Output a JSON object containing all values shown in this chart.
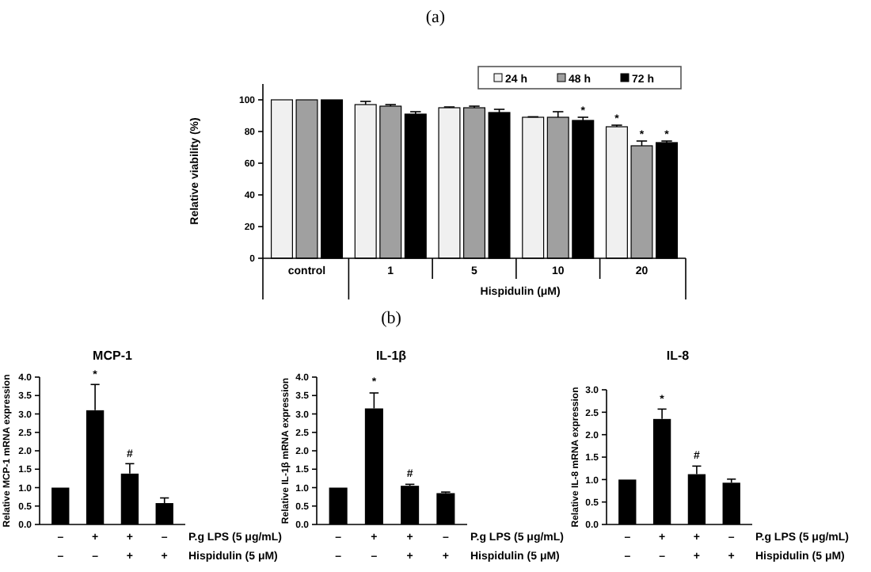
{
  "chart_data": [
    {
      "type": "bar",
      "title": "(a)",
      "ylabel": "Relative viability (%)",
      "xlabel": "Hispidulin (μM)",
      "categories": [
        "control",
        "1",
        "5",
        "10",
        "20"
      ],
      "ylim": [
        0,
        110
      ],
      "yticks": [
        0,
        20,
        40,
        60,
        80,
        100
      ],
      "legend": "top right",
      "series": [
        {
          "name": "24 h",
          "color": "#f0f0f0",
          "values": [
            100,
            97,
            95,
            89,
            83
          ],
          "errors": [
            0,
            2,
            0.5,
            0.3,
            1
          ]
        },
        {
          "name": "48 h",
          "color": "#a0a0a0",
          "values": [
            100,
            96,
            95,
            89,
            71
          ],
          "errors": [
            0,
            1,
            1,
            3.5,
            3
          ]
        },
        {
          "name": "72 h",
          "color": "#000000",
          "values": [
            100,
            91,
            92,
            87,
            73
          ],
          "errors": [
            0,
            1.5,
            2,
            2,
            1
          ]
        }
      ],
      "annotations": [
        {
          "text": "*",
          "y": 89
        },
        {
          "text": "*",
          "y": 84
        },
        {
          "text": "*",
          "y": 74
        },
        {
          "text": "*",
          "y": 74
        }
      ]
    },
    {
      "type": "bar",
      "title": "MCP-1",
      "ylabel": "Relative MCP-1 mRNA expression",
      "categories": [
        "–\n–",
        "+\n–",
        "+\n+",
        "–\n+"
      ],
      "ylim": [
        0,
        4
      ],
      "yticks": [
        {
          "value": 0,
          "label": "0.0"
        },
        0.5,
        {
          "value": 1,
          "label": "1.0"
        },
        1.5,
        {
          "value": 2,
          "label": "2.0"
        },
        2.5,
        {
          "value": 3,
          "label": "3.0"
        },
        3.5,
        {
          "value": 4,
          "label": "4.0"
        }
      ],
      "series": [
        {
          "color": "#000000",
          "values": [
            1.0,
            3.1,
            1.38,
            0.58
          ],
          "errors": [
            0,
            0.7,
            0.27,
            0.14
          ]
        }
      ],
      "annotations": [
        "P.g LPS (5 μg/mL)",
        "Hispidulin (5 μM)",
        {
          "text": "*",
          "y": 3.9
        },
        {
          "text": "#",
          "y": 1.75
        }
      ]
    },
    {
      "type": "bar",
      "title": "IL-1β",
      "ylabel": "Relative IL-1β mRNA expression",
      "categories": [
        "–\n–",
        "+\n–",
        "+\n+",
        "–\n+"
      ],
      "ylim": [
        0,
        4
      ],
      "yticks": [
        {
          "value": 0,
          "label": "0.0"
        },
        0.5,
        {
          "value": 1,
          "label": "1.0"
        },
        1.5,
        {
          "value": 2,
          "label": "2.0"
        },
        2.5,
        {
          "value": 3,
          "label": "3.0"
        },
        3.5,
        {
          "value": 4,
          "label": "4.0"
        }
      ],
      "series": [
        {
          "color": "#000000",
          "values": [
            1.0,
            3.15,
            1.05,
            0.85
          ],
          "errors": [
            0,
            0.42,
            0.04,
            0.03
          ]
        }
      ],
      "annotations": [
        "P.g LPS (5 μg/mL)",
        "Hispidulin (5 μM)",
        "(b)",
        {
          "text": "*",
          "y": 3.7
        },
        {
          "text": "#",
          "y": 1.2
        }
      ]
    },
    {
      "type": "bar",
      "title": "IL-8",
      "ylabel": "Relative IL-8 mRNA expression",
      "categories": [
        "–\n–",
        "+\n–",
        "+\n+",
        "–\n+"
      ],
      "ylim": [
        0,
        3
      ],
      "yticks": [
        {
          "value": 0,
          "label": "0.0"
        },
        0.5,
        {
          "value": 1,
          "label": "1.0"
        },
        1.5,
        {
          "value": 2,
          "label": "2.0"
        },
        2.5,
        {
          "value": 3,
          "label": "3.0"
        }
      ],
      "series": [
        {
          "color": "#000000",
          "values": [
            1.0,
            2.35,
            1.12,
            0.93
          ],
          "errors": [
            0,
            0.22,
            0.18,
            0.08
          ]
        }
      ],
      "annotations": [
        "P.g LPS (5 μg/mL)",
        "Hispidulin (5 μM)",
        {
          "text": "*",
          "y": 2.65
        },
        {
          "text": "#",
          "y": 1.4
        }
      ]
    }
  ]
}
